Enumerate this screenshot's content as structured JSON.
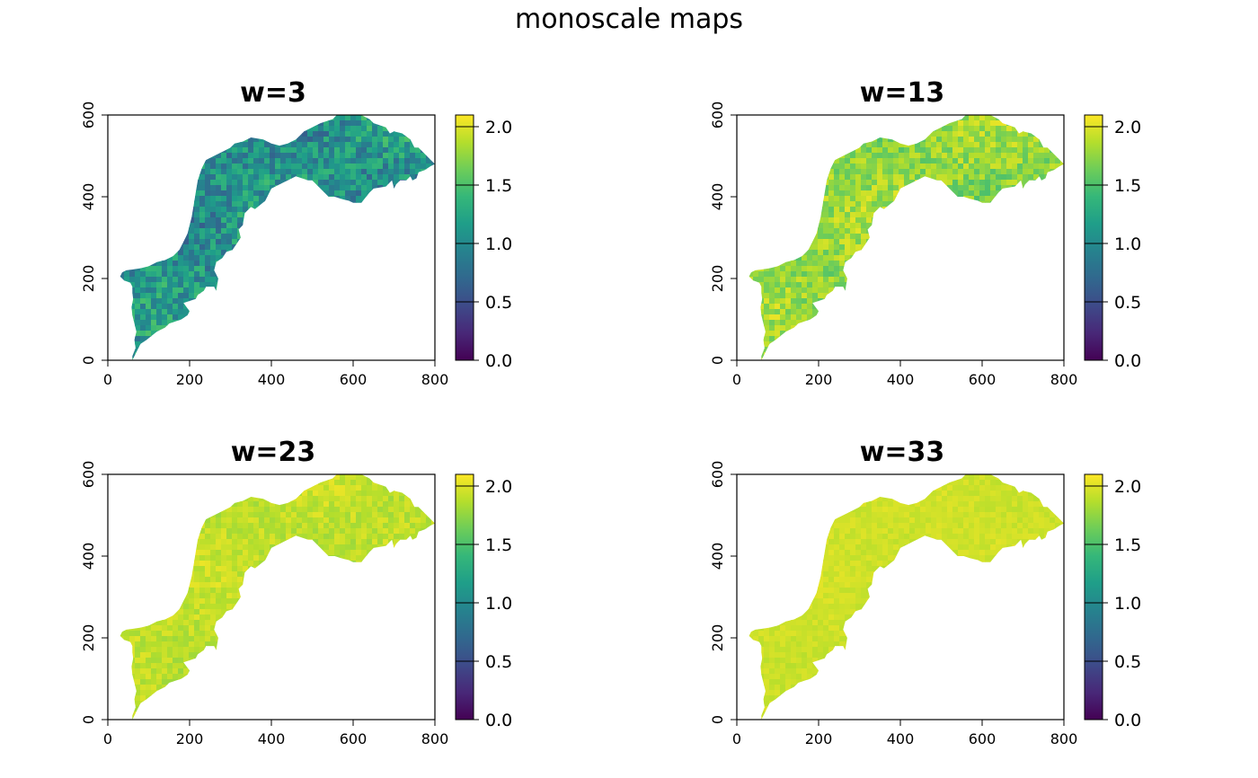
{
  "title": "monoscale maps",
  "colormap": {
    "name": "viridis",
    "stops": [
      "#440154",
      "#482878",
      "#3E4A89",
      "#31688E",
      "#26828E",
      "#1F9E89",
      "#35B779",
      "#6DCD59",
      "#B4DE2C",
      "#FDE725"
    ]
  },
  "chart_data": [
    {
      "type": "heatmap",
      "title": "w=3",
      "xlim": [
        0,
        800
      ],
      "ylim": [
        0,
        600
      ],
      "x_ticks": [
        "0",
        "200",
        "400",
        "600",
        "800"
      ],
      "y_ticks": [
        "0",
        "200",
        "400",
        "600"
      ],
      "value_range": [
        0,
        2.1
      ],
      "legend_ticks": [
        "0.0",
        "0.5",
        "1.0",
        "1.5",
        "2.0"
      ],
      "legend_placement": "right",
      "typical_value": 1.05,
      "value_spread": 0.5,
      "dominant_color": "#1F9E89"
    },
    {
      "type": "heatmap",
      "title": "w=13",
      "xlim": [
        0,
        800
      ],
      "ylim": [
        0,
        600
      ],
      "x_ticks": [
        "0",
        "200",
        "400",
        "600",
        "800"
      ],
      "y_ticks": [
        "0",
        "200",
        "400",
        "600"
      ],
      "value_range": [
        0,
        2.1
      ],
      "legend_ticks": [
        "0.0",
        "0.5",
        "1.0",
        "1.5",
        "2.0"
      ],
      "legend_placement": "right",
      "typical_value": 1.75,
      "value_spread": 0.3,
      "dominant_color": "#B4DE2C"
    },
    {
      "type": "heatmap",
      "title": "w=23",
      "xlim": [
        0,
        800
      ],
      "ylim": [
        0,
        600
      ],
      "x_ticks": [
        "0",
        "200",
        "400",
        "600",
        "800"
      ],
      "y_ticks": [
        "0",
        "200",
        "400",
        "600"
      ],
      "value_range": [
        0,
        2.1
      ],
      "legend_ticks": [
        "0.0",
        "0.5",
        "1.0",
        "1.5",
        "2.0"
      ],
      "legend_placement": "right",
      "typical_value": 1.9,
      "value_spread": 0.15,
      "dominant_color": "#C9E120"
    },
    {
      "type": "heatmap",
      "title": "w=33",
      "xlim": [
        0,
        800
      ],
      "ylim": [
        0,
        600
      ],
      "x_ticks": [
        "0",
        "200",
        "400",
        "600",
        "800"
      ],
      "y_ticks": [
        "0",
        "200",
        "400",
        "600"
      ],
      "value_range": [
        0,
        2.1
      ],
      "legend_ticks": [
        "0.0",
        "0.5",
        "1.0",
        "1.5",
        "2.0"
      ],
      "legend_placement": "right",
      "typical_value": 1.95,
      "value_spread": 0.08,
      "dominant_color": "#D2E21B"
    }
  ]
}
